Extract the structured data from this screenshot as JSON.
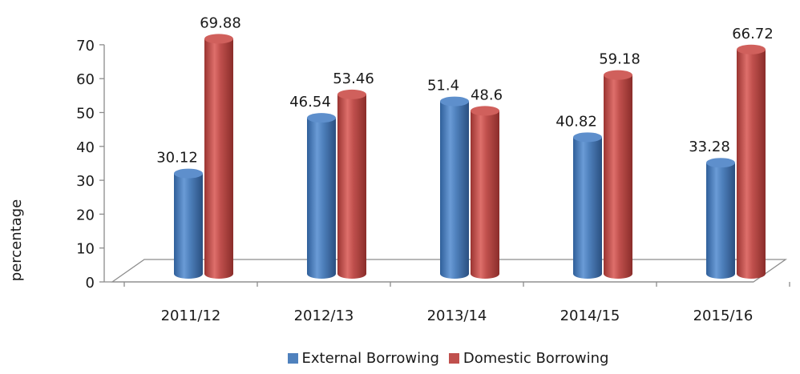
{
  "chart_data": {
    "type": "bar",
    "categories": [
      "2011/12",
      "2012/13",
      "2013/14",
      "2014/15",
      "2015/16"
    ],
    "series": [
      {
        "name": "External Borrowing",
        "values": [
          30.12,
          46.54,
          51.4,
          40.82,
          33.28
        ],
        "labels": [
          "30.12",
          "46.54",
          "51.4",
          "40.82",
          "33.28"
        ],
        "color": "#4f81bd"
      },
      {
        "name": "Domestic Borrowing",
        "values": [
          69.88,
          53.46,
          48.6,
          59.18,
          66.72
        ],
        "labels": [
          "69.88",
          "53.46",
          "48.6",
          "59.18",
          "66.72"
        ],
        "color": "#c0504d"
      }
    ],
    "ylabel": "percentage",
    "ylim": [
      0,
      70
    ],
    "yticks": [
      "0",
      "10",
      "20",
      "30",
      "40",
      "50",
      "60",
      "70"
    ],
    "grid": false,
    "legend": "bottom",
    "style": "3d-cylinder"
  }
}
